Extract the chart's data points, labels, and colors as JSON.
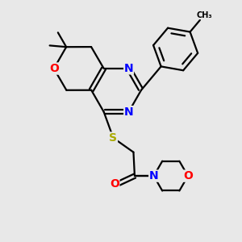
{
  "bg_color": "#e8e8e8",
  "bond_color": "#000000",
  "bond_width": 1.6,
  "atom_colors": {
    "N": "#0000ff",
    "O": "#ff0000",
    "S": "#aaaa00",
    "C": "#000000"
  },
  "font_size_atom": 10,
  "figsize": [
    3.0,
    3.0
  ],
  "dpi": 100
}
